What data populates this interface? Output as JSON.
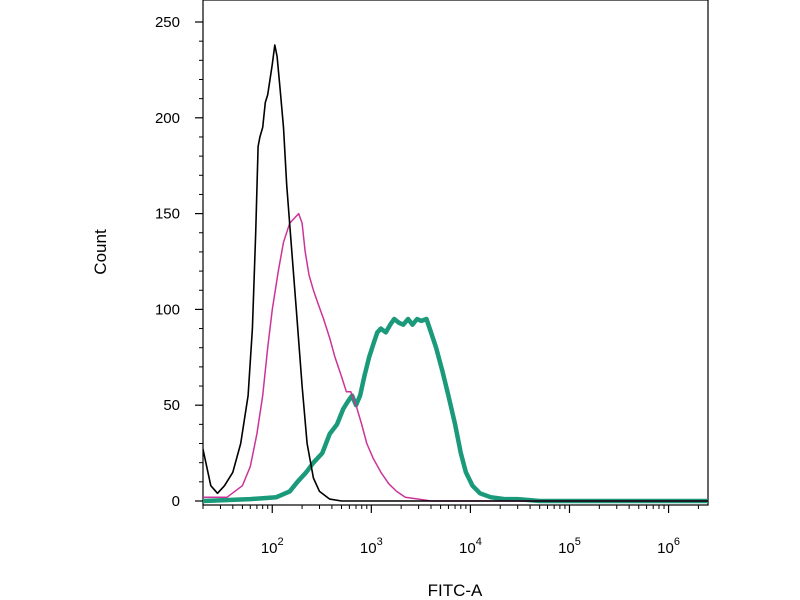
{
  "chart_data": {
    "type": "line",
    "title": "",
    "xlabel": "FITC-A",
    "ylabel": "Count",
    "x_scale": "log",
    "xlim": [
      20,
      2500000
    ],
    "ylim": [
      0,
      260
    ],
    "grid": false,
    "legend": "none",
    "x_ticks": [
      {
        "value": 100,
        "base": "10",
        "exp": "2"
      },
      {
        "value": 1000,
        "base": "10",
        "exp": "3"
      },
      {
        "value": 10000,
        "base": "10",
        "exp": "4"
      },
      {
        "value": 100000,
        "base": "10",
        "exp": "5"
      },
      {
        "value": 1000000,
        "base": "10",
        "exp": "6"
      }
    ],
    "y_ticks": [
      {
        "value": 0,
        "label": "0"
      },
      {
        "value": 50,
        "label": "50"
      },
      {
        "value": 100,
        "label": "100"
      },
      {
        "value": 150,
        "label": "150"
      },
      {
        "value": 200,
        "label": "200"
      },
      {
        "value": 250,
        "label": "250"
      }
    ],
    "series": [
      {
        "color": "#000000",
        "stroke": 1.6,
        "points": [
          [
            20,
            27
          ],
          [
            24,
            8
          ],
          [
            28,
            4
          ],
          [
            33,
            8
          ],
          [
            40,
            15
          ],
          [
            48,
            30
          ],
          [
            57,
            55
          ],
          [
            63,
            90
          ],
          [
            68,
            140
          ],
          [
            72,
            185
          ],
          [
            75,
            190
          ],
          [
            80,
            195
          ],
          [
            85,
            208
          ],
          [
            90,
            212
          ],
          [
            95,
            220
          ],
          [
            100,
            228
          ],
          [
            106,
            238
          ],
          [
            112,
            232
          ],
          [
            120,
            215
          ],
          [
            130,
            195
          ],
          [
            140,
            165
          ],
          [
            155,
            135
          ],
          [
            175,
            100
          ],
          [
            200,
            60
          ],
          [
            225,
            30
          ],
          [
            260,
            12
          ],
          [
            300,
            5
          ],
          [
            380,
            1
          ],
          [
            500,
            0
          ],
          [
            2500000,
            0
          ]
        ]
      },
      {
        "color": "#cc3399",
        "stroke": 1.5,
        "points": [
          [
            20,
            2
          ],
          [
            35,
            2
          ],
          [
            50,
            8
          ],
          [
            60,
            18
          ],
          [
            70,
            35
          ],
          [
            80,
            55
          ],
          [
            90,
            80
          ],
          [
            100,
            100
          ],
          [
            115,
            120
          ],
          [
            130,
            135
          ],
          [
            150,
            145
          ],
          [
            170,
            148
          ],
          [
            185,
            150
          ],
          [
            200,
            145
          ],
          [
            215,
            130
          ],
          [
            235,
            118
          ],
          [
            260,
            110
          ],
          [
            290,
            103
          ],
          [
            330,
            95
          ],
          [
            380,
            85
          ],
          [
            430,
            75
          ],
          [
            500,
            65
          ],
          [
            560,
            57
          ],
          [
            620,
            57
          ],
          [
            700,
            50
          ],
          [
            800,
            40
          ],
          [
            900,
            30
          ],
          [
            1050,
            22
          ],
          [
            1250,
            15
          ],
          [
            1500,
            9
          ],
          [
            1800,
            5
          ],
          [
            2200,
            2
          ],
          [
            3000,
            1
          ],
          [
            4000,
            0
          ],
          [
            2500000,
            0
          ]
        ]
      },
      {
        "color": "#1a9a7a",
        "stroke": 4.5,
        "points": [
          [
            20,
            0
          ],
          [
            60,
            1
          ],
          [
            110,
            2
          ],
          [
            150,
            5
          ],
          [
            180,
            10
          ],
          [
            220,
            15
          ],
          [
            260,
            20
          ],
          [
            320,
            25
          ],
          [
            380,
            35
          ],
          [
            450,
            40
          ],
          [
            520,
            48
          ],
          [
            580,
            52
          ],
          [
            640,
            55
          ],
          [
            700,
            50
          ],
          [
            770,
            55
          ],
          [
            850,
            65
          ],
          [
            950,
            75
          ],
          [
            1050,
            82
          ],
          [
            1150,
            88
          ],
          [
            1250,
            90
          ],
          [
            1400,
            88
          ],
          [
            1550,
            92
          ],
          [
            1700,
            95
          ],
          [
            1900,
            93
          ],
          [
            2100,
            92
          ],
          [
            2350,
            95
          ],
          [
            2600,
            92
          ],
          [
            2900,
            95
          ],
          [
            3200,
            94
          ],
          [
            3600,
            95
          ],
          [
            4000,
            88
          ],
          [
            4500,
            80
          ],
          [
            5200,
            68
          ],
          [
            6000,
            55
          ],
          [
            7000,
            40
          ],
          [
            8000,
            25
          ],
          [
            9000,
            15
          ],
          [
            10500,
            8
          ],
          [
            12500,
            4
          ],
          [
            16000,
            2
          ],
          [
            22000,
            1
          ],
          [
            30000,
            1
          ],
          [
            50000,
            0
          ],
          [
            2500000,
            0
          ]
        ]
      }
    ]
  }
}
